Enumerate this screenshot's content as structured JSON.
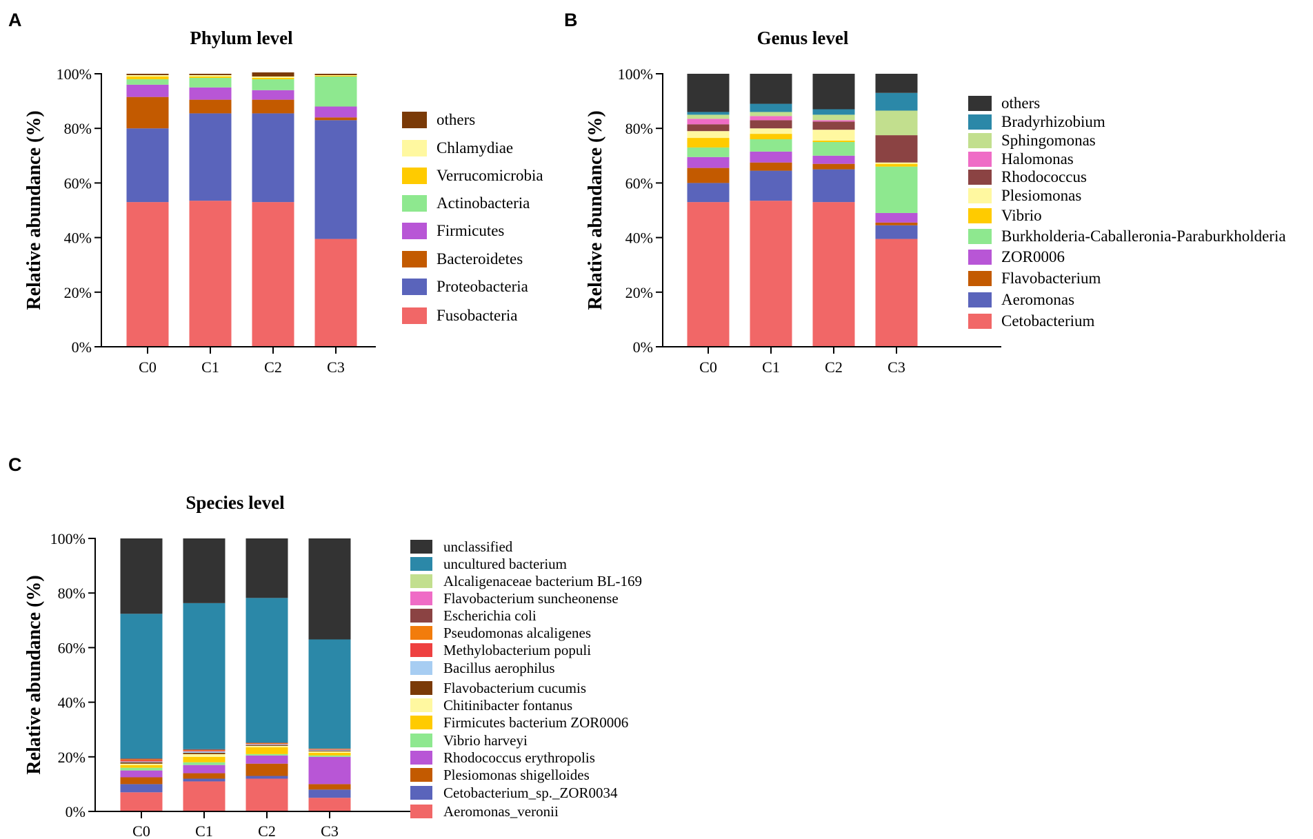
{
  "chart_data": [
    {
      "panel": "A",
      "type": "bar",
      "stacked": true,
      "title": "Phylum level",
      "xlabel": "",
      "ylabel": "Relative abundance  (%)",
      "ylim": [
        0,
        100
      ],
      "yticks": [
        "0%",
        "20%",
        "40%",
        "60%",
        "80%",
        "100%"
      ],
      "categories": [
        "C0",
        "C1",
        "C2",
        "C3"
      ],
      "series": [
        {
          "name": "Fusobacteria",
          "color": "#f16767",
          "values": [
            53,
            53.5,
            53,
            39.5
          ]
        },
        {
          "name": "Proteobacteria",
          "color": "#5a64bb",
          "values": [
            27,
            32,
            32.5,
            43.5
          ]
        },
        {
          "name": "Bacteroidetes",
          "color": "#c35a00",
          "values": [
            11.5,
            5,
            5,
            1
          ]
        },
        {
          "name": "Firmicutes",
          "color": "#b856d6",
          "values": [
            4.5,
            4.5,
            3.5,
            4
          ]
        },
        {
          "name": "Actinobacteria",
          "color": "#8ee88f",
          "values": [
            2,
            3.5,
            4,
            11
          ]
        },
        {
          "name": "Verrucomicrobia",
          "color": "#ffcb00",
          "values": [
            1,
            0.5,
            0.5,
            0.3
          ]
        },
        {
          "name": "Chlamydiae",
          "color": "#fff8a0",
          "values": [
            0.5,
            0.5,
            0.5,
            0.2
          ]
        },
        {
          "name": "others",
          "color": "#7a3a07",
          "values": [
            0.5,
            0.5,
            1.5,
            0.5
          ]
        }
      ]
    },
    {
      "panel": "B",
      "type": "bar",
      "stacked": true,
      "title": "Genus level",
      "xlabel": "",
      "ylabel": "Relative abundance  (%)",
      "ylim": [
        0,
        100
      ],
      "yticks": [
        "0%",
        "20%",
        "40%",
        "60%",
        "80%",
        "100%"
      ],
      "categories": [
        "C0",
        "C1",
        "C2",
        "C3"
      ],
      "series": [
        {
          "name": "Cetobacterium",
          "color": "#f16767",
          "values": [
            53,
            53.5,
            53,
            39.5
          ]
        },
        {
          "name": "Aeromonas",
          "color": "#5a64bb",
          "values": [
            7,
            11,
            12,
            5
          ]
        },
        {
          "name": "Flavobacterium",
          "color": "#c35a00",
          "values": [
            5.5,
            3,
            2,
            1
          ]
        },
        {
          "name": "ZOR0006",
          "color": "#b856d6",
          "values": [
            4,
            4,
            3,
            3.5
          ]
        },
        {
          "name": "Burkholderia-Caballeronia-Paraburkholderia",
          "color": "#8ee88f",
          "values": [
            3.5,
            4.5,
            5,
            17
          ]
        },
        {
          "name": "Vibrio",
          "color": "#ffcb00",
          "values": [
            3.5,
            2,
            0.5,
            1
          ]
        },
        {
          "name": "Plesiomonas",
          "color": "#fff8a0",
          "values": [
            2.5,
            2,
            4,
            0.5
          ]
        },
        {
          "name": "Rhodococcus",
          "color": "#8b4343",
          "values": [
            2.5,
            3,
            3,
            10
          ]
        },
        {
          "name": "Halomonas",
          "color": "#ef6cc6",
          "values": [
            2,
            1.5,
            0.5,
            0
          ]
        },
        {
          "name": "Sphingomonas",
          "color": "#c2df8e",
          "values": [
            1.5,
            1.5,
            2,
            9
          ]
        },
        {
          "name": "Bradyrhizobium",
          "color": "#2b88a8",
          "values": [
            1,
            3,
            2,
            6.5
          ]
        },
        {
          "name": "others",
          "color": "#333333",
          "values": [
            14,
            11,
            13,
            7
          ]
        }
      ]
    },
    {
      "panel": "C",
      "type": "bar",
      "stacked": true,
      "title": "Species level",
      "xlabel": "",
      "ylabel": "Relative abundance  (%)",
      "ylim": [
        0,
        100
      ],
      "yticks": [
        "0%",
        "20%",
        "40%",
        "60%",
        "80%",
        "100%"
      ],
      "categories": [
        "C0",
        "C1",
        "C2",
        "C3"
      ],
      "series": [
        {
          "name": "Aeromonas_veronii",
          "color": "#f16767",
          "values": [
            7,
            11,
            12,
            5
          ]
        },
        {
          "name": "Cetobacterium_sp._ZOR0034",
          "color": "#5a64bb",
          "values": [
            3,
            1,
            1,
            3
          ]
        },
        {
          "name": "Plesiomonas shigelloides",
          "color": "#c35a00",
          "values": [
            2.5,
            2,
            4.5,
            2
          ]
        },
        {
          "name": "Rhodococcus erythropolis",
          "color": "#b856d6",
          "values": [
            2.5,
            3,
            3,
            10
          ]
        },
        {
          "name": "Vibrio harveyi",
          "color": "#8ee88f",
          "values": [
            1,
            1,
            0.5,
            0.5
          ]
        },
        {
          "name": "Firmicutes bacterium ZOR0006",
          "color": "#ffcb00",
          "values": [
            1,
            2,
            2.5,
            1
          ]
        },
        {
          "name": "Chitinibacter fontanus",
          "color": "#fff8a0",
          "values": [
            0.5,
            1,
            0.5,
            0.5
          ]
        },
        {
          "name": "Flavobacterium cucumis",
          "color": "#7a3a07",
          "values": [
            0.5,
            0.5,
            0.3,
            0.3
          ]
        },
        {
          "name": "Bacillus aerophilus",
          "color": "#a7cdf2",
          "values": [
            0.3,
            0.5,
            0.3,
            0.3
          ]
        },
        {
          "name": "Methylobacterium populi",
          "color": "#ee4040",
          "values": [
            0.5,
            0.3,
            0.2,
            0.2
          ]
        },
        {
          "name": "Pseudomonas alcaligenes",
          "color": "#f27c0c",
          "values": [
            0.3,
            0.2,
            0.2,
            0.2
          ]
        },
        {
          "name": "Escherichia coli",
          "color": "#8b4343",
          "values": [
            0.3,
            0.3,
            0.2,
            0
          ]
        },
        {
          "name": "Flavobacterium suncheonense",
          "color": "#ef6cc6",
          "values": [
            0,
            0,
            0,
            0
          ]
        },
        {
          "name": "Alcaligenaceae bacterium BL-169",
          "color": "#c2df8e",
          "values": [
            0,
            0,
            0,
            0
          ]
        },
        {
          "name": "uncultured bacterium",
          "color": "#2b88a8",
          "values": [
            53,
            53.5,
            53,
            40
          ]
        },
        {
          "name": "unclassified",
          "color": "#333333",
          "values": [
            27.6,
            23.7,
            21.8,
            37
          ]
        }
      ]
    }
  ],
  "panel_labels": [
    "A",
    "B",
    "C"
  ]
}
